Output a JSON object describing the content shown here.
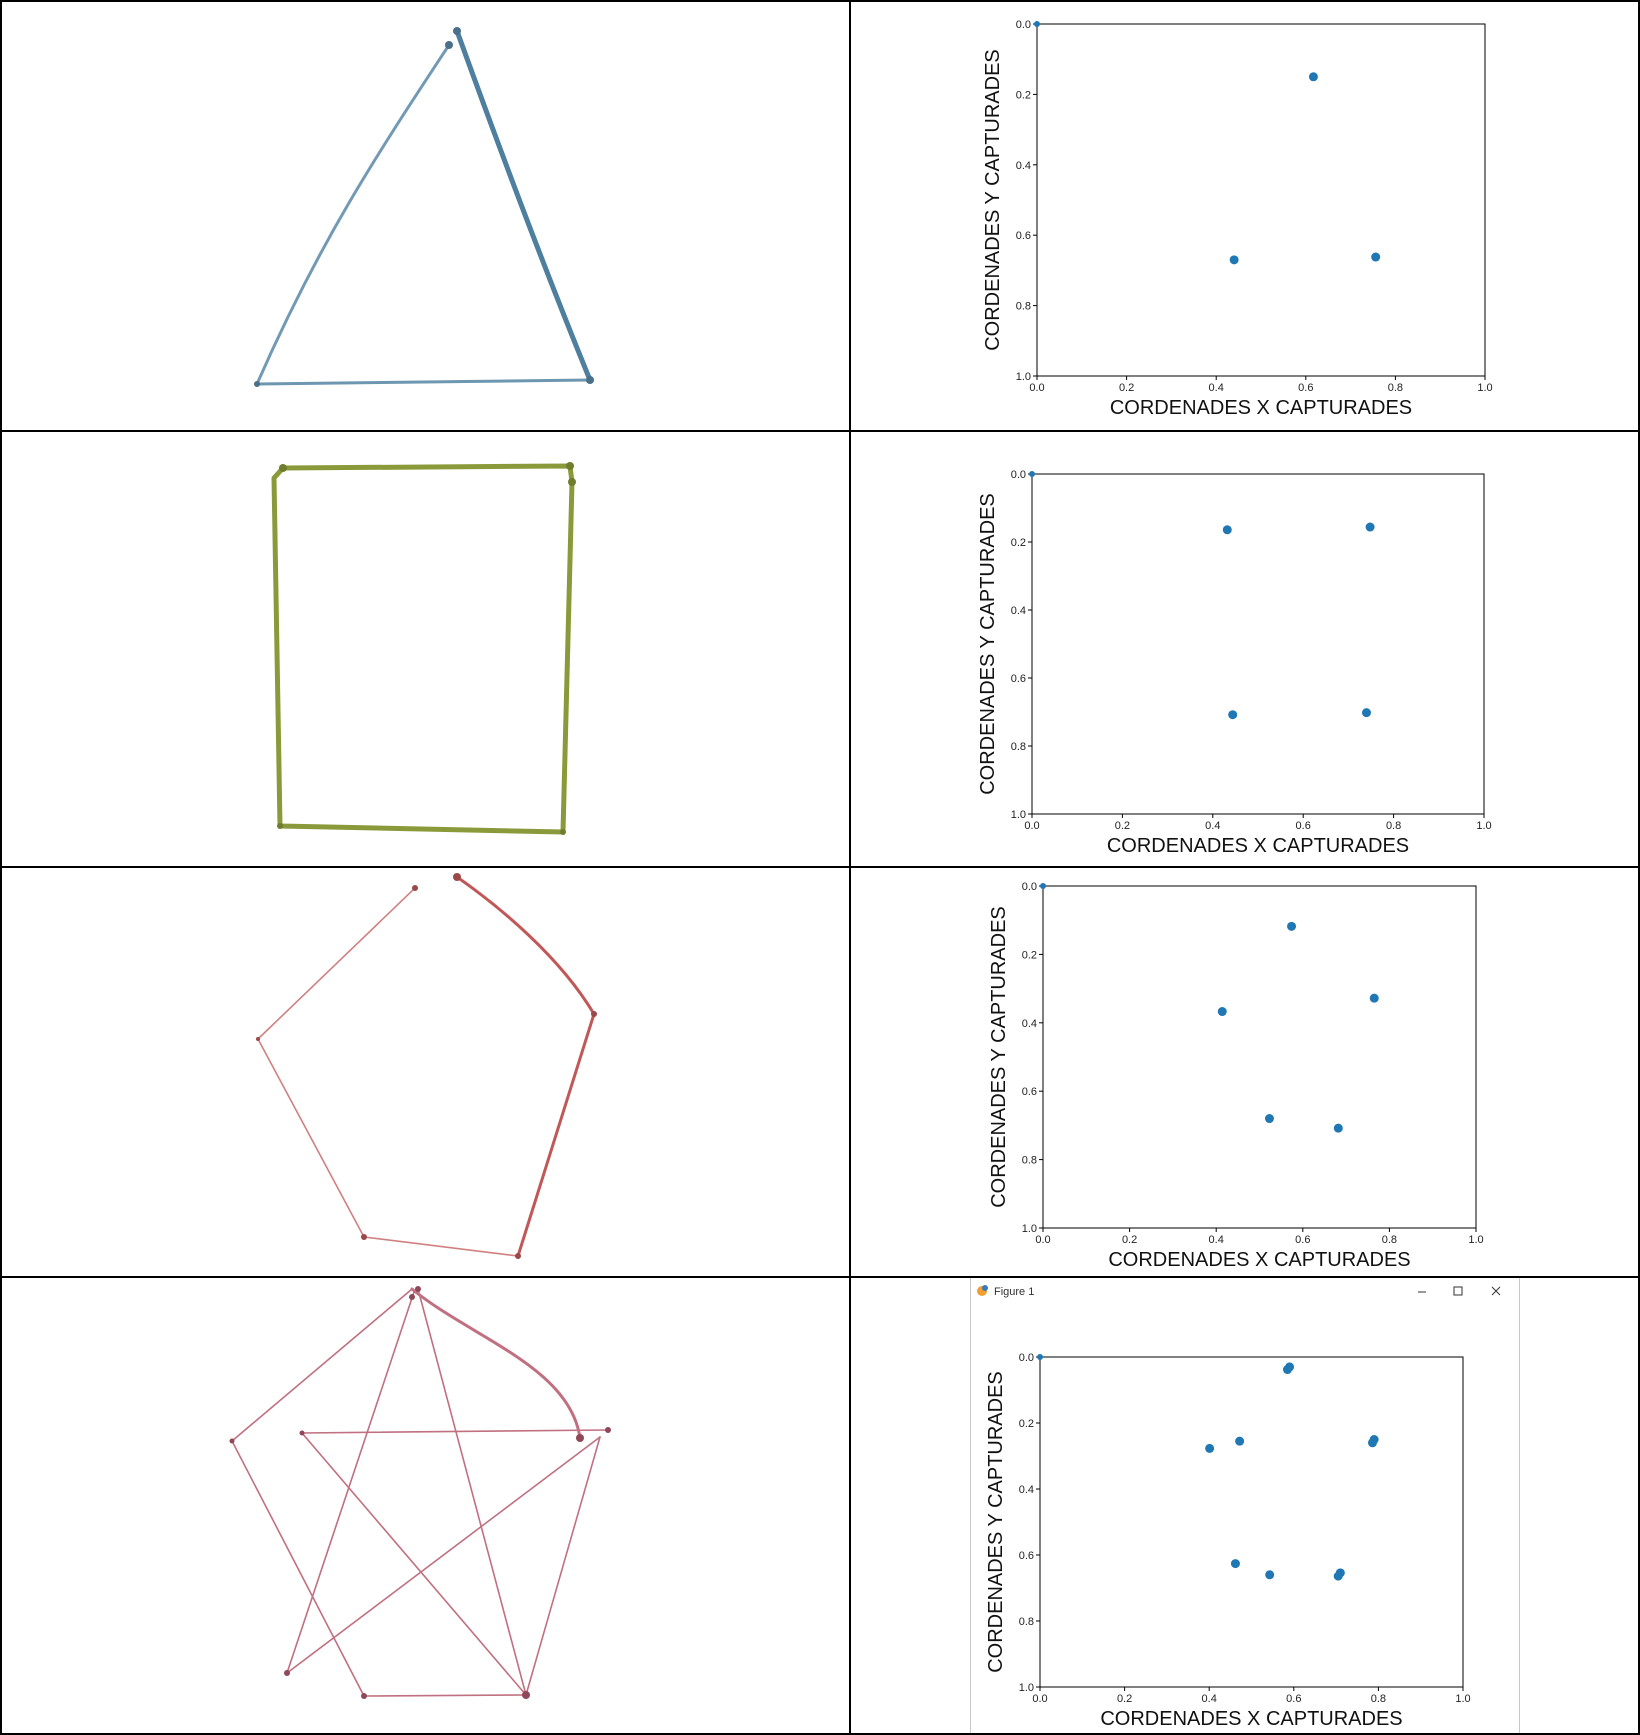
{
  "colors": {
    "point": "#1f77b4",
    "triangle_ink": "#5b88a8",
    "rectangle_ink": "#8a9a3a",
    "pentagon_ink": "#c46060",
    "star_ink": "#c07080",
    "grid_line": "#000000"
  },
  "rows": [
    {
      "drawing": {
        "shape": "triangle"
      }
    },
    {
      "drawing": {
        "shape": "rectangle"
      }
    },
    {
      "drawing": {
        "shape": "pentagon"
      }
    },
    {
      "drawing": {
        "shape": "star-pentagon"
      }
    }
  ],
  "figure_window": {
    "title": "Figure 1",
    "icons": [
      "minimize-icon",
      "maximize-icon",
      "close-icon"
    ]
  },
  "chart_data": [
    {
      "type": "scatter",
      "xlabel": "CORDENADES X CAPTURADES",
      "ylabel": "CORDENADES Y CAPTURADES",
      "xlim": [
        0.0,
        1.0
      ],
      "ylim": [
        1.0,
        0.0
      ],
      "y_inverted": true,
      "xticks": [
        "0.0",
        "0.2",
        "0.4",
        "0.6",
        "0.8",
        "1.0"
      ],
      "yticks": [
        "0.0",
        "0.2",
        "0.4",
        "0.6",
        "0.8",
        "1.0"
      ],
      "grid": false,
      "series": [
        {
          "x": [
            0.0,
            0.617,
            0.44,
            0.756
          ],
          "y": [
            0.0,
            0.15,
            0.67,
            0.662
          ]
        }
      ]
    },
    {
      "type": "scatter",
      "xlabel": "CORDENADES X CAPTURADES",
      "ylabel": "CORDENADES Y CAPTURADES",
      "xlim": [
        0.0,
        1.0
      ],
      "ylim": [
        1.0,
        0.0
      ],
      "y_inverted": true,
      "xticks": [
        "0.0",
        "0.2",
        "0.4",
        "0.6",
        "0.8",
        "1.0"
      ],
      "yticks": [
        "0.0",
        "0.2",
        "0.4",
        "0.6",
        "0.8",
        "1.0"
      ],
      "grid": false,
      "series": [
        {
          "x": [
            0.0,
            0.432,
            0.748,
            0.444,
            0.74
          ],
          "y": [
            0.0,
            0.164,
            0.156,
            0.708,
            0.702
          ]
        }
      ]
    },
    {
      "type": "scatter",
      "xlabel": "CORDENADES X CAPTURADES",
      "ylabel": "CORDENADES Y CAPTURADES",
      "xlim": [
        0.0,
        1.0
      ],
      "ylim": [
        1.0,
        0.0
      ],
      "y_inverted": true,
      "xticks": [
        "0.0",
        "0.2",
        "0.4",
        "0.6",
        "0.8",
        "1.0"
      ],
      "yticks": [
        "0.0",
        "0.2",
        "0.4",
        "0.6",
        "0.8",
        "1.0"
      ],
      "grid": false,
      "series": [
        {
          "x": [
            0.0,
            0.574,
            0.414,
            0.765,
            0.523,
            0.682
          ],
          "y": [
            0.0,
            0.118,
            0.367,
            0.328,
            0.68,
            0.708
          ]
        }
      ]
    },
    {
      "type": "scatter",
      "xlabel": "CORDENADES X CAPTURADES",
      "ylabel": "CORDENADES Y CAPTURADES",
      "xlim": [
        0.0,
        1.0
      ],
      "ylim": [
        1.0,
        0.0
      ],
      "y_inverted": true,
      "xticks": [
        "0.0",
        "0.2",
        "0.4",
        "0.6",
        "0.8",
        "1.0"
      ],
      "yticks": [
        "0.0",
        "0.2",
        "0.4",
        "0.6",
        "0.8",
        "1.0"
      ],
      "grid": false,
      "series": [
        {
          "x": [
            0.0,
            0.59,
            0.585,
            0.401,
            0.472,
            0.79,
            0.786,
            0.462,
            0.543,
            0.71,
            0.705
          ],
          "y": [
            0.0,
            0.03,
            0.038,
            0.277,
            0.255,
            0.25,
            0.26,
            0.626,
            0.66,
            0.654,
            0.664
          ]
        }
      ]
    }
  ]
}
